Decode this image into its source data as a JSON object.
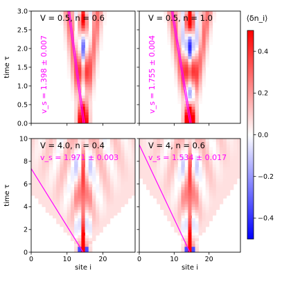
{
  "chart_data": {
    "type": "heatmap",
    "layout": "2x2 panels with shared colorbar",
    "colormap": "bwr",
    "xlabel": "site i",
    "ylabel": "time τ",
    "colorbar": {
      "label": "⟨δn_i⟩",
      "range": [
        -0.5,
        0.5
      ],
      "ticks": [
        -0.4,
        -0.2,
        0.0,
        0.2,
        0.4
      ],
      "tick_labels": [
        "−0.4",
        "−0.2",
        "0.0",
        "0.2",
        "0.4"
      ]
    },
    "panels": [
      {
        "title": "V = 0.5, n = 0.6",
        "velocity_label": "v_s = 1.398 ± 0.007",
        "velocity_label_orientation": "vertical",
        "xlim": [
          0,
          29
        ],
        "ylim": [
          0,
          3
        ],
        "xticks": [
          0,
          10,
          20
        ],
        "xtick_labels": [],
        "yticks": [
          0.0,
          0.5,
          1.0,
          1.5,
          2.0,
          2.5,
          3.0
        ],
        "ytick_labels": [
          "0.0",
          "0.5",
          "1.0",
          "1.5",
          "2.0",
          "2.5",
          "3.0"
        ],
        "show_ylabel": true,
        "show_xlabel": false,
        "v": 0.5,
        "n": 0.6,
        "vs": 1.398,
        "center_site": 14.5
      },
      {
        "title": "V = 0.5, n = 1.0",
        "velocity_label": "v_s = 1.755 ± 0.004",
        "velocity_label_orientation": "vertical",
        "xlim": [
          0,
          29
        ],
        "ylim": [
          0,
          3
        ],
        "xticks": [
          0,
          10,
          20
        ],
        "xtick_labels": [],
        "yticks": [
          0.0,
          0.5,
          1.0,
          1.5,
          2.0,
          2.5,
          3.0
        ],
        "ytick_labels": [],
        "show_ylabel": false,
        "show_xlabel": false,
        "v": 0.5,
        "n": 1.0,
        "vs": 1.755,
        "center_site": 14.5
      },
      {
        "title": "V = 4.0, n = 0.4",
        "velocity_label": "v_s = 1.971 ± 0.003",
        "velocity_label_orientation": "horizontal",
        "xlim": [
          0,
          29
        ],
        "ylim": [
          0,
          10
        ],
        "xticks": [
          0,
          10,
          20
        ],
        "xtick_labels": [
          "0",
          "10",
          "20"
        ],
        "yticks": [
          0,
          2,
          4,
          6,
          8,
          10
        ],
        "ytick_labels": [
          "0",
          "2",
          "4",
          "6",
          "8",
          "10"
        ],
        "show_ylabel": true,
        "show_xlabel": true,
        "v": 4.0,
        "n": 0.4,
        "vs": 1.971,
        "center_site": 14.5
      },
      {
        "title": "V = 4, n = 0.6",
        "velocity_label": "v_s = 1.534 ± 0.017",
        "velocity_label_orientation": "horizontal",
        "xlim": [
          0,
          29
        ],
        "ylim": [
          0,
          10
        ],
        "xticks": [
          0,
          10,
          20
        ],
        "xtick_labels": [
          "0",
          "10",
          "20"
        ],
        "yticks": [
          0,
          2,
          4,
          6,
          8,
          10
        ],
        "ytick_labels": [],
        "show_ylabel": false,
        "show_xlabel": true,
        "v": 4.0,
        "n": 0.6,
        "vs": 1.534,
        "center_site": 14.5
      }
    ],
    "light_cone_color": "#ff00ff"
  }
}
